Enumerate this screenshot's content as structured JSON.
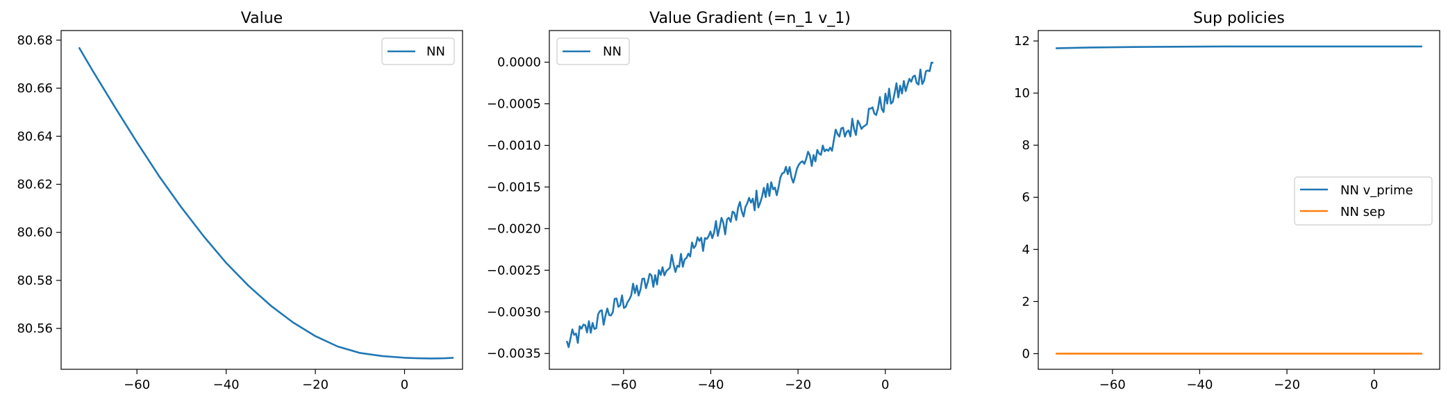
{
  "chart_data": [
    {
      "type": "line",
      "title": "Value",
      "xlabel": "",
      "ylabel": "",
      "xlim": [
        -77,
        13
      ],
      "ylim": [
        80.543,
        80.684
      ],
      "xticks": [
        -60,
        -40,
        -20,
        0
      ],
      "xtick_labels": [
        "−60",
        "−40",
        "−20",
        "0"
      ],
      "yticks": [
        80.56,
        80.58,
        80.6,
        80.62,
        80.64,
        80.66,
        80.68
      ],
      "ytick_labels": [
        "80.56",
        "80.58",
        "80.60",
        "80.62",
        "80.64",
        "80.66",
        "80.68"
      ],
      "legend": "top-right",
      "grid": false,
      "series": [
        {
          "name": "NN",
          "color": "#1f77b4",
          "x": [
            -73,
            -70,
            -65,
            -60,
            -55,
            -50,
            -45,
            -40,
            -35,
            -30,
            -25,
            -20,
            -15,
            -10,
            -5,
            0,
            3,
            6,
            9,
            11
          ],
          "y": [
            80.677,
            80.6675,
            80.6523,
            80.6375,
            80.6233,
            80.6103,
            80.5983,
            80.5873,
            80.5778,
            80.5695,
            80.5625,
            80.5568,
            80.5525,
            80.5498,
            80.5485,
            80.5478,
            80.5476,
            80.5475,
            80.5476,
            80.5478
          ]
        }
      ]
    },
    {
      "type": "line",
      "title": "Value Gradient (=n_1 v_1)",
      "xlabel": "",
      "ylabel": "",
      "xlim": [
        -77,
        15
      ],
      "ylim": [
        -0.00369,
        0.00038
      ],
      "xticks": [
        -60,
        -40,
        -20,
        0
      ],
      "xtick_labels": [
        "−60",
        "−40",
        "−20",
        "0"
      ],
      "yticks": [
        -0.0035,
        -0.003,
        -0.0025,
        -0.002,
        -0.0015,
        -0.001,
        -0.0005,
        0
      ],
      "ytick_labels": [
        "−0.0035",
        "−0.0030",
        "−0.0025",
        "−0.0020",
        "−0.0015",
        "−0.0010",
        "−0.0005",
        "0.0000"
      ],
      "legend": "top-left",
      "grid": false,
      "series": [
        {
          "name": "NN",
          "color": "#1f77b4",
          "x_range": [
            -73,
            11
          ],
          "points": 200,
          "y_start": -0.00339,
          "y_end": -4e-05,
          "noise_amplitude": 0.00013
        }
      ]
    },
    {
      "type": "line",
      "title": "Sup policies",
      "xlabel": "",
      "ylabel": "",
      "xlim": [
        -77,
        15
      ],
      "ylim": [
        -0.6,
        12.4
      ],
      "xticks": [
        -60,
        -40,
        -20,
        0
      ],
      "xtick_labels": [
        "−60",
        "−40",
        "−20",
        "0"
      ],
      "yticks": [
        0,
        2,
        4,
        6,
        8,
        10,
        12
      ],
      "ytick_labels": [
        "0",
        "2",
        "4",
        "6",
        "8",
        "10",
        "12"
      ],
      "legend": "center-right",
      "grid": false,
      "series": [
        {
          "name": "NN v_prime",
          "color": "#1f77b4",
          "x": [
            -73,
            -65,
            -55,
            -45,
            -35,
            -25,
            -15,
            -5,
            5,
            11
          ],
          "y": [
            11.72,
            11.75,
            11.77,
            11.78,
            11.79,
            11.79,
            11.79,
            11.79,
            11.79,
            11.79
          ]
        },
        {
          "name": "NN sep",
          "color": "#ff7f0e",
          "x": [
            -73,
            11
          ],
          "y": [
            0,
            0
          ]
        }
      ]
    }
  ]
}
